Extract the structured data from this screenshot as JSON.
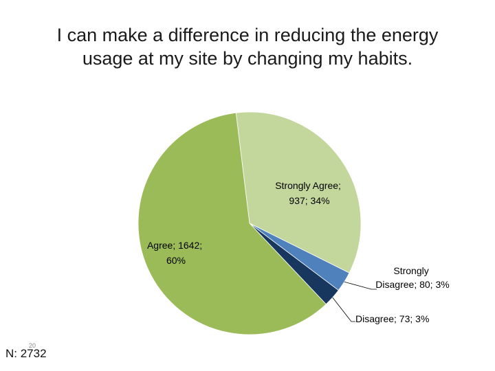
{
  "chart_data": {
    "type": "pie",
    "title_lines": [
      "I can make a difference in reducing the energy",
      "usage at my site by changing my habits."
    ],
    "slices": [
      {
        "name": "Strongly Agree",
        "value": 937,
        "percent": "34%",
        "label_lines": [
          "Strongly Agree;",
          "937; 34%"
        ],
        "color": "#c3d69b"
      },
      {
        "name": "Strongly Disagree",
        "value": 80,
        "percent": "3%",
        "label_lines": [
          "Strongly",
          "Disagree; 80; 3%"
        ],
        "color": "#4f81bd"
      },
      {
        "name": "Disagree",
        "value": 73,
        "percent": "3%",
        "label_lines": [
          "Disagree; 73; 3%"
        ],
        "color": "#17375e"
      },
      {
        "name": "Agree",
        "value": 1642,
        "percent": "60%",
        "label_lines": [
          "Agree; 1642;",
          "60%"
        ],
        "color": "#9bbb59"
      }
    ],
    "start_angle_deg": -7
  },
  "footer": {
    "sample_size": "N: 2732",
    "slide_number": "20"
  }
}
